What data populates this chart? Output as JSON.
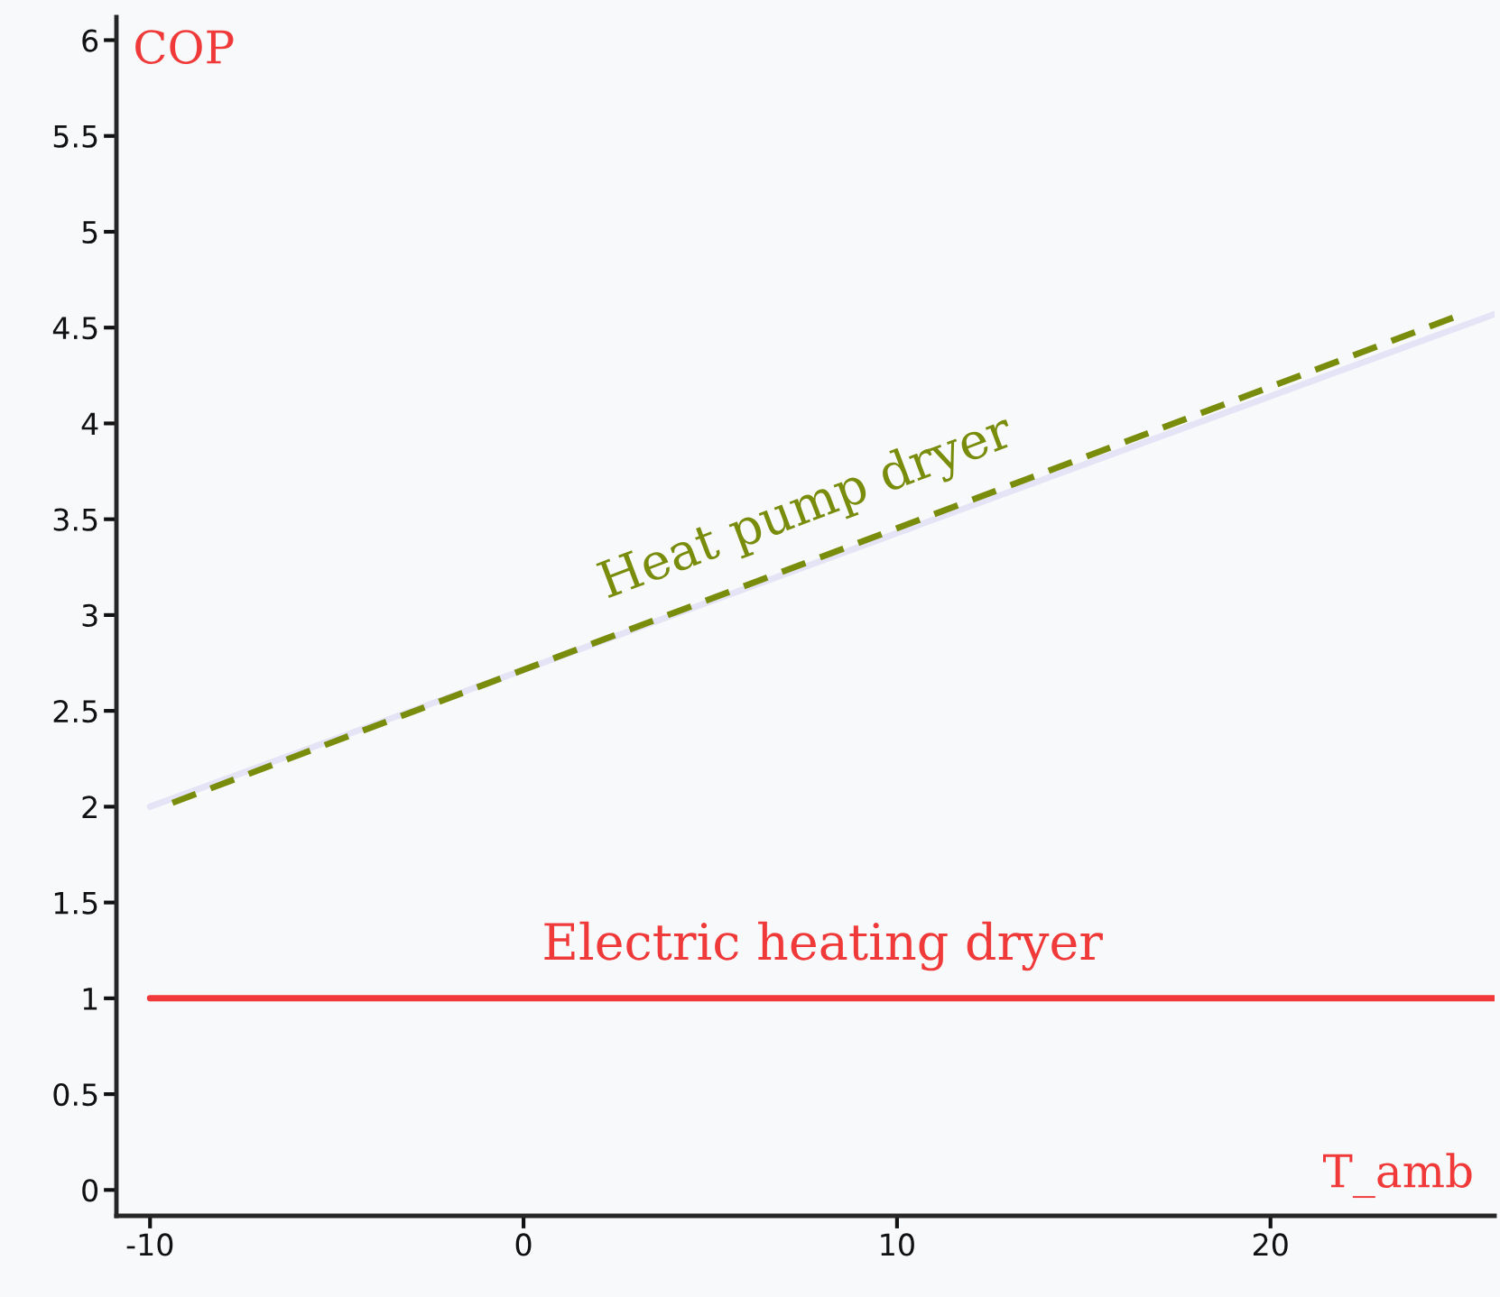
{
  "chart_data": {
    "type": "line",
    "xlabel": "T_amb",
    "ylabel": "COP",
    "xlim": [
      -10.9,
      26
    ],
    "xticks": [
      -10,
      0,
      10,
      20
    ],
    "ylim": [
      -0.135,
      6.12
    ],
    "yticks": [
      0,
      0.5,
      1,
      1.5,
      2,
      2.5,
      3,
      3.5,
      4,
      4.5,
      5,
      5.5,
      6
    ],
    "grid": false,
    "legend": false,
    "marker": "none",
    "series": [
      {
        "color": "#e4e4f6",
        "line_style": "solid",
        "x": [
          -10,
          26
        ],
        "values": [
          2.0,
          4.57
        ]
      },
      {
        "name": "Heat pump dryer",
        "color": "#7a8c0c",
        "line_style": "dashed",
        "x": [
          -9.4,
          25
        ],
        "values": [
          2.02,
          4.56
        ]
      },
      {
        "name": "Electric heating dryer",
        "color": "#f03a3a",
        "line_style": "solid",
        "x": [
          -10,
          26
        ],
        "values": [
          1,
          1
        ]
      }
    ]
  }
}
